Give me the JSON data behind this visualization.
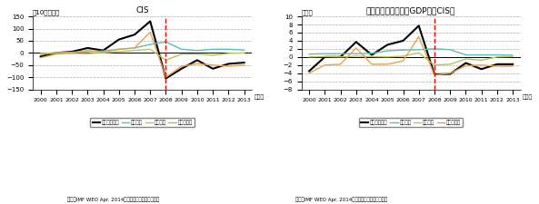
{
  "years": [
    2000,
    2001,
    2002,
    2003,
    2004,
    2005,
    2006,
    2007,
    2008,
    2009,
    2010,
    2011,
    2012,
    2013
  ],
  "left": {
    "title": "CIS",
    "ylabel": "（10億ドル）",
    "ylim": [
      -150,
      150
    ],
    "yticks": [
      -150,
      -100,
      -50,
      0,
      50,
      100,
      150
    ],
    "total": [
      -15,
      0,
      5,
      20,
      10,
      55,
      75,
      130,
      -105,
      -65,
      -30,
      -65,
      -45,
      -40
    ],
    "direct": [
      -5,
      2,
      3,
      5,
      8,
      15,
      20,
      35,
      45,
      15,
      10,
      15,
      15,
      12
    ],
    "portfolio": [
      -2,
      -2,
      -2,
      -3,
      0,
      5,
      10,
      15,
      -30,
      -5,
      -5,
      -10,
      -2,
      0
    ],
    "other": [
      -20,
      -5,
      0,
      10,
      2,
      15,
      20,
      85,
      -100,
      -55,
      -45,
      -50,
      -55,
      -50
    ]
  },
  "right": {
    "title": "民間資本フロー：対GDP比（CIS）",
    "ylabel": "（％）",
    "ylim": [
      -8,
      10
    ],
    "yticks": [
      -8,
      -6,
      -4,
      -2,
      0,
      2,
      4,
      6,
      8,
      10
    ],
    "total": [
      -3.5,
      0,
      0,
      3.7,
      0.5,
      3.0,
      4.0,
      7.7,
      -4.3,
      -4.2,
      -1.5,
      -3.0,
      -1.8,
      -1.8
    ],
    "direct": [
      0.7,
      0.8,
      0.8,
      0.8,
      0.9,
      1.5,
      1.7,
      1.8,
      2.0,
      1.8,
      0.5,
      0.5,
      0.5,
      0.4
    ],
    "portfolio": [
      0.0,
      0.1,
      0.0,
      0.2,
      0.1,
      0.0,
      0.2,
      1.0,
      -2.0,
      -1.8,
      -0.5,
      -0.8,
      0.0,
      0.1
    ],
    "other": [
      -4.0,
      -2.0,
      -1.8,
      2.2,
      -1.8,
      -1.8,
      -1.0,
      5.0,
      -4.5,
      -4.0,
      -2.2,
      -2.0,
      -2.3,
      -2.3
    ]
  },
  "vline_year": 2008,
  "colors": {
    "total": "#000000",
    "direct": "#5bbcb8",
    "portfolio": "#b8c45a",
    "other": "#e8a050"
  },
  "legend_labels": [
    "民間資本全体",
    "直接投資",
    "証券投資",
    "その他投資"
  ],
  "source_text": "資料：IMF WEO Apr. 2014　データベースから作成。"
}
